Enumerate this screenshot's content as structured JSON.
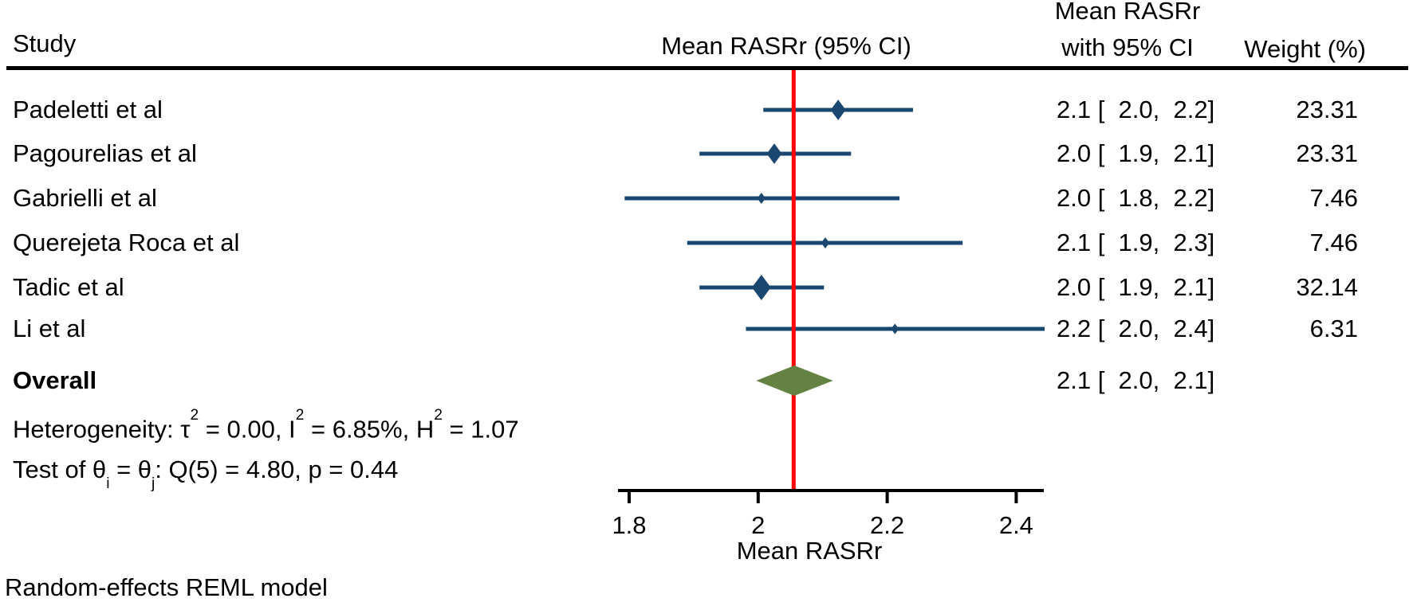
{
  "header": {
    "study_col": "Study",
    "plot_col": "Mean RASRr (95% CI)",
    "value_col_line1": "Mean RASRr",
    "value_col_line2": "with 95% CI",
    "weight_col": "Weight (%)"
  },
  "rows": [
    {
      "label": "Padeletti et al",
      "value": "2.1 [  2.0,  2.2]",
      "weight": "23.31"
    },
    {
      "label": "Pagourelias et al",
      "value": "2.0 [  1.9,  2.1]",
      "weight": "23.31"
    },
    {
      "label": "Gabrielli et al",
      "value": "2.0 [  1.8,  2.2]",
      "weight": "7.46"
    },
    {
      "label": "Querejeta Roca et al",
      "value": "2.1 [  1.9,  2.3]",
      "weight": "7.46"
    },
    {
      "label": "Tadic et al",
      "value": "2.0 [  1.9,  2.1]",
      "weight": "32.14"
    },
    {
      "label": "Li et al",
      "value": "2.2 [  2.0,  2.4]",
      "weight": "6.31"
    }
  ],
  "overall": {
    "label": "Overall",
    "value": "2.1 [  2.0,  2.1]"
  },
  "stats": {
    "heterogeneity_segments": [
      {
        "t": "Heterogeneity: τ"
      },
      {
        "t": "2",
        "s": "sup"
      },
      {
        "t": " = 0.00, I"
      },
      {
        "t": "2",
        "s": "sup"
      },
      {
        "t": " = 6.85%, H"
      },
      {
        "t": "2",
        "s": "sup"
      },
      {
        "t": " = 1.07"
      }
    ],
    "test_segments": [
      {
        "t": "Test of θ"
      },
      {
        "t": "i",
        "s": "sub"
      },
      {
        "t": " = θ"
      },
      {
        "t": "j",
        "s": "sub"
      },
      {
        "t": ": Q(5) = 4.80, p = 0.44"
      }
    ]
  },
  "footer": {
    "model": "Random-effects REML model"
  },
  "colors": {
    "ci": "#1a476f",
    "overall_diamond": "#648241",
    "ref_line": "#ff0000",
    "axis": "#000000",
    "text": "#000000"
  },
  "chart_data": {
    "type": "scatter",
    "subtype": "forest_plot",
    "title": "Mean RASRr (95% CI)",
    "xlabel": "Mean RASRr",
    "xlim": [
      1.78,
      2.45
    ],
    "x_ticks": [
      {
        "v": 1.8,
        "label": "1.8"
      },
      {
        "v": 2.0,
        "label": "2"
      },
      {
        "v": 2.2,
        "label": "2.2"
      },
      {
        "v": 2.4,
        "label": "2.4"
      }
    ],
    "ref_line_x": 2.055,
    "studies": [
      {
        "name": "Padeletti et al",
        "mean": 2.1,
        "ci_lo": 2.0,
        "ci_hi": 2.2,
        "weight_pct": 23.31,
        "plot": {
          "mean": 2.124,
          "lo": 2.008,
          "hi": 2.24
        }
      },
      {
        "name": "Pagourelias et al",
        "mean": 2.0,
        "ci_lo": 1.9,
        "ci_hi": 2.1,
        "weight_pct": 23.31,
        "plot": {
          "mean": 2.025,
          "lo": 1.909,
          "hi": 2.144
        }
      },
      {
        "name": "Gabrielli et al",
        "mean": 2.0,
        "ci_lo": 1.8,
        "ci_hi": 2.2,
        "weight_pct": 7.46,
        "plot": {
          "mean": 2.005,
          "lo": 1.793,
          "hi": 2.219
        }
      },
      {
        "name": "Querejeta Roca et al",
        "mean": 2.1,
        "ci_lo": 1.9,
        "ci_hi": 2.3,
        "weight_pct": 7.46,
        "plot": {
          "mean": 2.104,
          "lo": 1.89,
          "hi": 2.317
        }
      },
      {
        "name": "Tadic et al",
        "mean": 2.0,
        "ci_lo": 1.9,
        "ci_hi": 2.1,
        "weight_pct": 32.14,
        "plot": {
          "mean": 2.005,
          "lo": 1.909,
          "hi": 2.102
        }
      },
      {
        "name": "Li et al",
        "mean": 2.2,
        "ci_lo": 2.0,
        "ci_hi": 2.4,
        "weight_pct": 6.31,
        "plot": {
          "mean": 2.212,
          "lo": 1.981,
          "hi": 2.444
        }
      }
    ],
    "overall": {
      "mean": 2.1,
      "ci_lo": 2.0,
      "ci_hi": 2.1,
      "plot": {
        "center": 2.056,
        "lo": 1.997,
        "hi": 2.116
      }
    },
    "heterogeneity": {
      "tau2": 0.0,
      "I2_pct": 6.85,
      "H2": 1.07
    },
    "test": {
      "Q_df": 5,
      "Q": 4.8,
      "p": 0.44
    },
    "model": "Random-effects REML model",
    "legend": false,
    "grid": false
  }
}
